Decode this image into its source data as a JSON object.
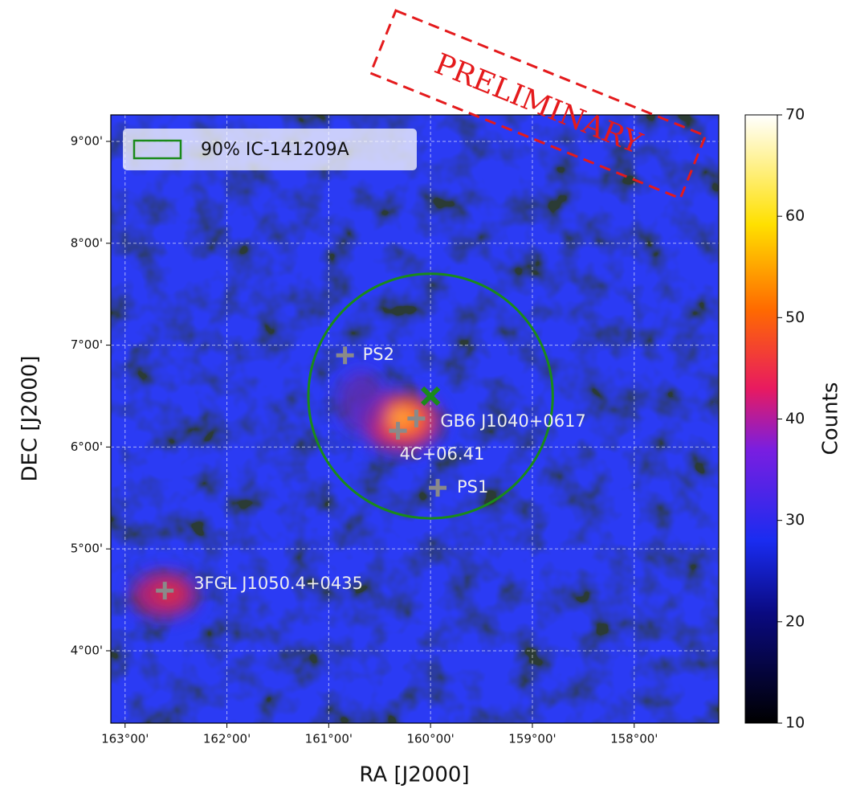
{
  "chart_data": {
    "type": "skymap",
    "xlabel": "RA [J2000]",
    "ylabel": "DEC [J2000]",
    "xlim": [
      163.14,
      157.17
    ],
    "ylim": [
      3.29,
      9.26
    ],
    "xticks": [
      {
        "value": 163,
        "label": "163°00'"
      },
      {
        "value": 162,
        "label": "162°00'"
      },
      {
        "value": 161,
        "label": "161°00'"
      },
      {
        "value": 160,
        "label": "160°00'"
      },
      {
        "value": 159,
        "label": "159°00'"
      },
      {
        "value": 158,
        "label": "158°00'"
      }
    ],
    "yticks": [
      {
        "value": 4,
        "label": "4°00'"
      },
      {
        "value": 5,
        "label": "5°00'"
      },
      {
        "value": 6,
        "label": "6°00'"
      },
      {
        "value": 7,
        "label": "7°00'"
      },
      {
        "value": 8,
        "label": "8°00'"
      },
      {
        "value": 9,
        "label": "9°00'"
      }
    ],
    "grid": true,
    "colorbar": {
      "label": "Counts",
      "lim": [
        10,
        70
      ],
      "ticks": [
        10,
        20,
        30,
        40,
        50,
        60,
        70
      ],
      "colormap": "gnuplot2"
    },
    "region": {
      "name": "90% IC-141209A",
      "ra": 160.0,
      "dec": 6.5,
      "radius": 1.2,
      "color": "#1a8a1a"
    },
    "best_fit": {
      "ra": 160.0,
      "dec": 6.5,
      "color": "#1a8a1a"
    },
    "sources": [
      {
        "name": "PS2",
        "ra": 160.84,
        "dec": 6.9
      },
      {
        "name": "GB6 J1040+0617",
        "ra": 160.14,
        "dec": 6.28
      },
      {
        "name": "4C+06.41",
        "ra": 160.32,
        "dec": 6.16
      },
      {
        "name": "PS1",
        "ra": 159.93,
        "dec": 5.6
      },
      {
        "name": "3FGL J1050.4+0435",
        "ra": 162.61,
        "dec": 4.59
      }
    ],
    "legend": "upper left",
    "annotation": "PRELIMINARY"
  }
}
